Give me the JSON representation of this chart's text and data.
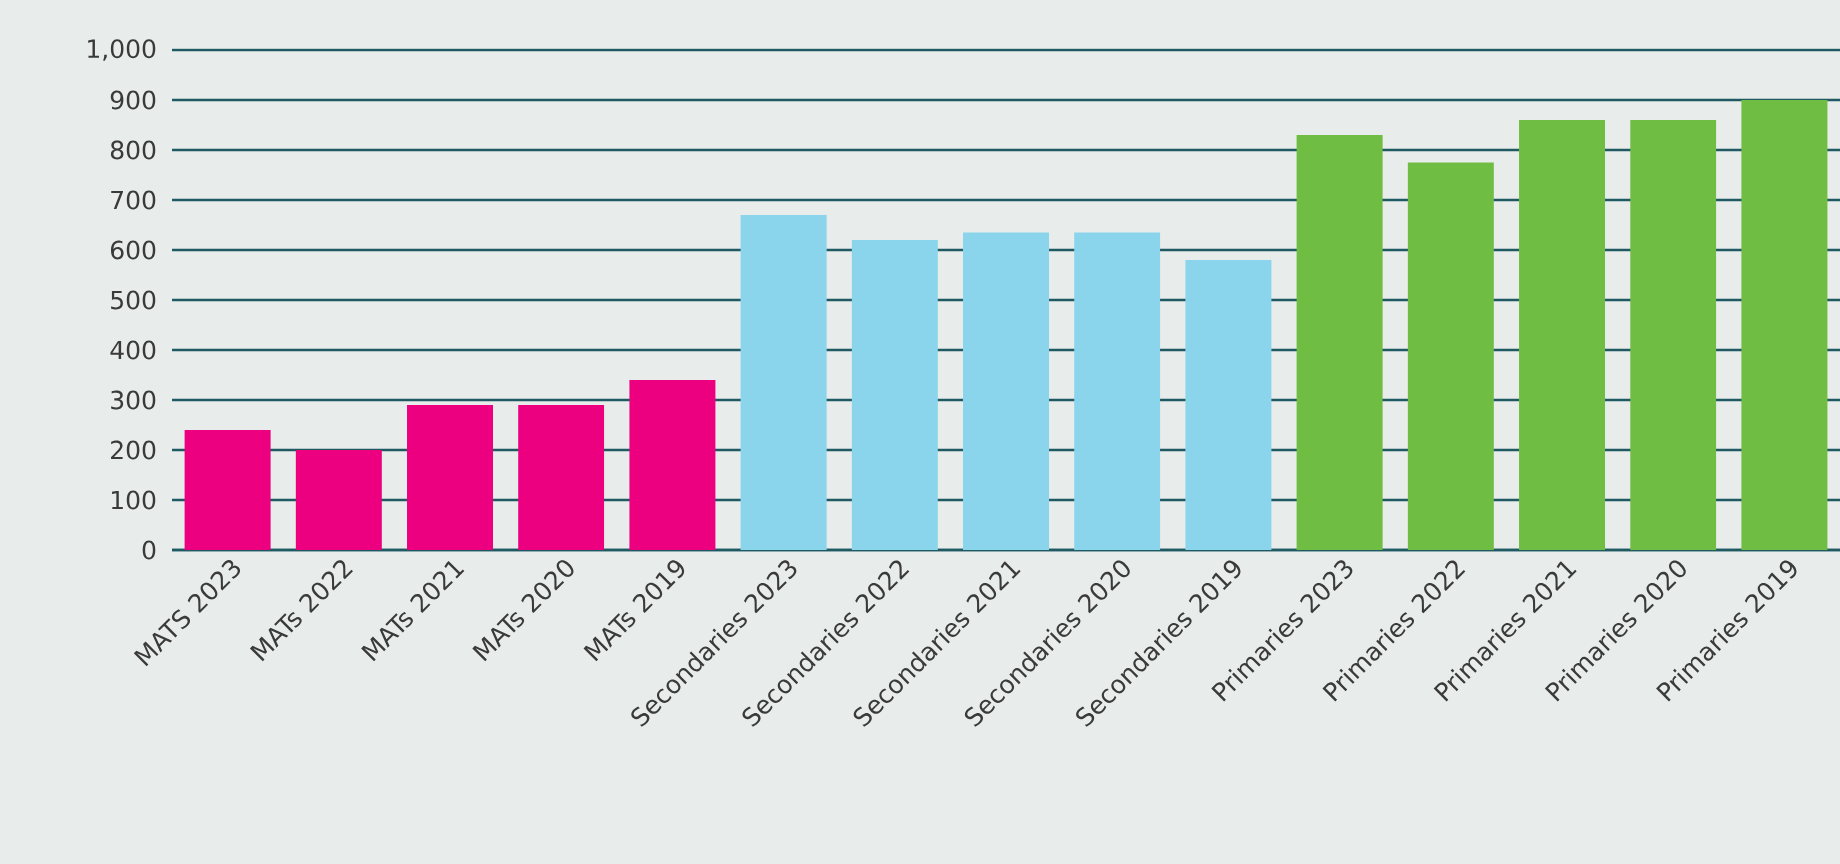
{
  "chart_data": {
    "type": "bar",
    "categories": [
      "MATS 2023",
      "MATs 2022",
      "MATs 2021",
      "MATs 2020",
      "MATs 2019",
      "Secondaries 2023",
      "Secondaries 2022",
      "Secondaries 2021",
      "Secondaries 2020",
      "Secondaries 2019",
      "Primaries 2023",
      "Primaries 2022",
      "Primaries 2021",
      "Primaries 2020",
      "Primaries 2019"
    ],
    "values": [
      240,
      200,
      290,
      290,
      340,
      670,
      620,
      635,
      635,
      580,
      830,
      775,
      860,
      860,
      900
    ],
    "colors": [
      "#ec0080",
      "#ec0080",
      "#ec0080",
      "#ec0080",
      "#ec0080",
      "#8ad5ec",
      "#8ad5ec",
      "#8ad5ec",
      "#8ad5ec",
      "#8ad5ec",
      "#70bd44",
      "#70bd44",
      "#70bd44",
      "#70bd44",
      "#70bd44"
    ],
    "ylim": [
      0,
      1000
    ],
    "yticks": [
      0,
      100,
      200,
      300,
      400,
      500,
      600,
      700,
      800,
      900,
      {
        "value": 1000,
        "label": "1,000"
      }
    ],
    "grid": "y"
  }
}
